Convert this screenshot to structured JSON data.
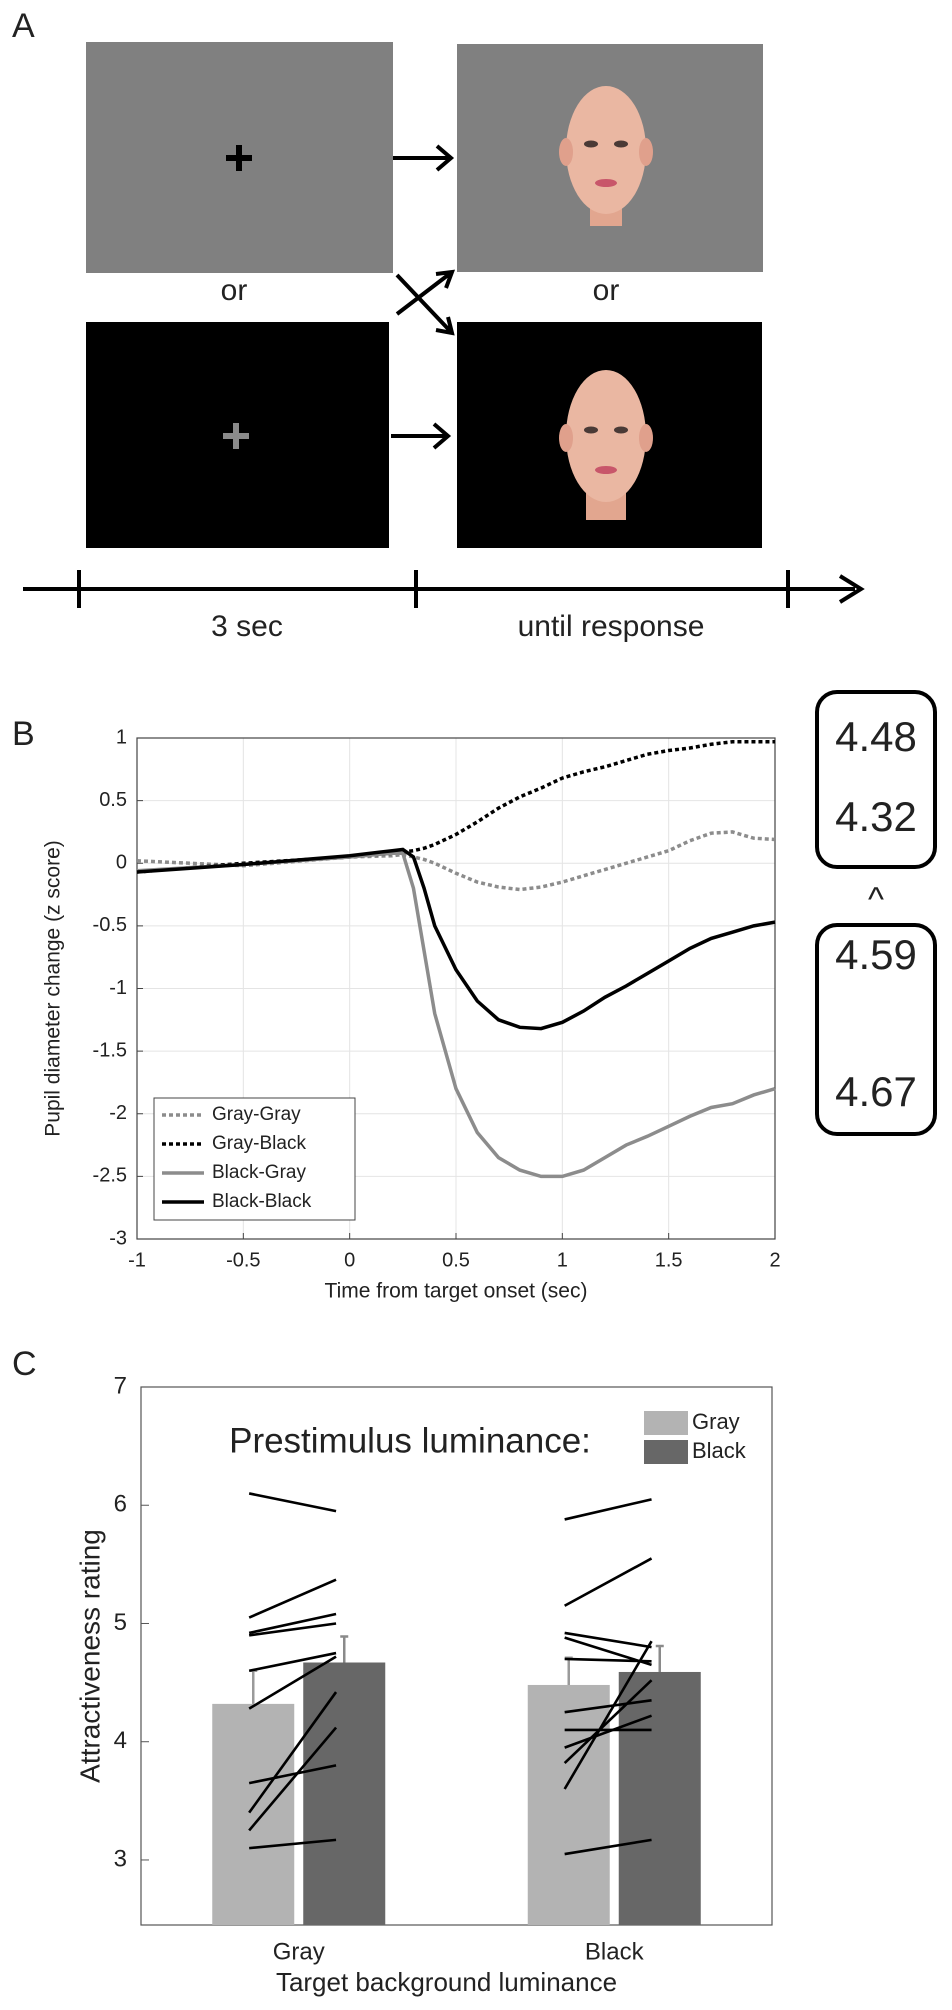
{
  "panel_a": {
    "label": "A",
    "or_top": "or",
    "or_bottom": "or",
    "timeline": {
      "first": "3 sec",
      "second": "until response"
    }
  },
  "panel_b_label": "B",
  "panel_c_label": "C",
  "boxes": [
    [
      4.48,
      4.32
    ],
    [
      4.59,
      4.67
    ]
  ],
  "comparison": "^",
  "chart_data": [
    {
      "type": "line",
      "xlabel": "Time from target onset (sec)",
      "ylabel": "Pupil diameter change (z score)",
      "x": [
        -1,
        -0.5,
        0,
        0.2,
        0.25,
        0.3,
        0.35,
        0.4,
        0.5,
        0.6,
        0.7,
        0.8,
        0.9,
        1.0,
        1.1,
        1.2,
        1.3,
        1.4,
        1.5,
        1.6,
        1.7,
        1.8,
        1.9,
        2
      ],
      "series": [
        {
          "name": "Gray-Gray",
          "color": "#8c8c8c",
          "dashed": true,
          "values": [
            0.02,
            -0.02,
            0.05,
            0.06,
            0.07,
            0.05,
            0.03,
            0.0,
            -0.08,
            -0.15,
            -0.19,
            -0.21,
            -0.19,
            -0.15,
            -0.1,
            -0.05,
            0.0,
            0.05,
            0.1,
            0.18,
            0.24,
            0.25,
            0.2,
            0.19
          ]
        },
        {
          "name": "Gray-Black",
          "color": "#000000",
          "dashed": true,
          "values": [
            -0.07,
            0.0,
            0.05,
            0.08,
            0.09,
            0.1,
            0.12,
            0.15,
            0.23,
            0.33,
            0.44,
            0.53,
            0.6,
            0.68,
            0.73,
            0.77,
            0.82,
            0.87,
            0.9,
            0.92,
            0.95,
            0.97,
            0.97,
            0.97
          ]
        },
        {
          "name": "Black-Gray",
          "color": "#8c8c8c",
          "dashed": false,
          "values": [
            -0.06,
            -0.01,
            0.05,
            0.08,
            0.08,
            -0.2,
            -0.7,
            -1.2,
            -1.8,
            -2.15,
            -2.35,
            -2.45,
            -2.5,
            -2.5,
            -2.45,
            -2.35,
            -2.25,
            -2.18,
            -2.1,
            -2.02,
            -1.95,
            -1.92,
            -1.85,
            -1.8
          ]
        },
        {
          "name": "Black-Black",
          "color": "#000000",
          "dashed": false,
          "values": [
            -0.07,
            -0.01,
            0.06,
            0.1,
            0.11,
            0.05,
            -0.2,
            -0.5,
            -0.85,
            -1.1,
            -1.25,
            -1.31,
            -1.32,
            -1.27,
            -1.18,
            -1.07,
            -0.98,
            -0.88,
            -0.78,
            -0.68,
            -0.6,
            -0.55,
            -0.5,
            -0.47
          ]
        }
      ],
      "xlim": [
        -1,
        2
      ],
      "xticks": [
        -1,
        -0.5,
        0,
        0.5,
        1,
        1.5,
        2
      ],
      "ylim": [
        -3,
        1
      ],
      "yticks": [
        -3,
        -2.5,
        -2,
        -1.5,
        -1,
        -0.5,
        0,
        0.5,
        1
      ],
      "grid": true,
      "legend": "lower left"
    },
    {
      "type": "bar",
      "title": "Prestimulus luminance:",
      "xlabel": "Target background luminance",
      "ylabel": "Attractiveness rating",
      "categories": [
        "Gray",
        "Black"
      ],
      "series": [
        {
          "name": "Gray",
          "color": "#b3b3b3",
          "error_color": "#9a9a9a",
          "values": [
            4.32,
            4.48
          ],
          "errors": [
            0.28,
            0.23
          ]
        },
        {
          "name": "Black",
          "color": "#676767",
          "error_color": "#8a8a8a",
          "values": [
            4.67,
            4.59
          ],
          "errors": [
            0.22,
            0.22
          ]
        }
      ],
      "individual": [
        [
          [
            6.1,
            5.95
          ],
          [
            5.05,
            5.37
          ],
          [
            4.92,
            5.08
          ],
          [
            4.9,
            5.0
          ],
          [
            4.6,
            4.75
          ],
          [
            4.28,
            4.72
          ],
          [
            3.65,
            3.8
          ],
          [
            3.4,
            4.42
          ],
          [
            3.25,
            4.12
          ],
          [
            3.1,
            3.17
          ]
        ],
        [
          [
            5.88,
            6.05
          ],
          [
            5.15,
            5.55
          ],
          [
            4.92,
            4.8
          ],
          [
            4.88,
            4.65
          ],
          [
            4.7,
            4.68
          ],
          [
            4.25,
            4.35
          ],
          [
            4.1,
            4.1
          ],
          [
            3.95,
            4.22
          ],
          [
            3.82,
            4.52
          ],
          [
            3.6,
            4.85
          ],
          [
            3.05,
            3.17
          ]
        ]
      ],
      "ylim": [
        2.45,
        7
      ],
      "yticks": [
        3,
        4,
        5,
        6,
        7
      ],
      "legend": "upper right"
    }
  ]
}
